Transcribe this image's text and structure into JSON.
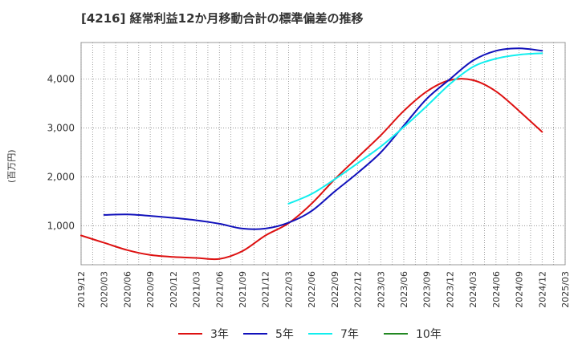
{
  "title": "[4216]  経常利益12か月移動合計の標準偏差の推移",
  "chart_data": {
    "type": "line",
    "ylabel": "(百万円)",
    "xlabel": "",
    "grid": true,
    "legend_position": "bottom",
    "x_ticks": [
      "2019/12",
      "2020/03",
      "2020/06",
      "2020/09",
      "2020/12",
      "2021/03",
      "2021/06",
      "2021/09",
      "2021/12",
      "2022/03",
      "2022/06",
      "2022/09",
      "2022/12",
      "2023/03",
      "2023/06",
      "2023/09",
      "2023/12",
      "2024/03",
      "2024/06",
      "2024/09",
      "2024/12",
      "2025/03"
    ],
    "y_ticks": [
      1000,
      2000,
      3000,
      4000
    ],
    "y_tick_labels": [
      "1,000",
      "2,000",
      "3,000",
      "4,000"
    ],
    "xlim": [
      "2019/12",
      "2025/03"
    ],
    "ylim": [
      200,
      4750
    ],
    "series": [
      {
        "name": "3年",
        "color": "#dd1111",
        "points": [
          [
            "2019/12",
            800
          ],
          [
            "2020/03",
            650
          ],
          [
            "2020/06",
            500
          ],
          [
            "2020/09",
            400
          ],
          [
            "2020/12",
            360
          ],
          [
            "2021/03",
            340
          ],
          [
            "2021/06",
            320
          ],
          [
            "2021/09",
            480
          ],
          [
            "2021/12",
            800
          ],
          [
            "2022/03",
            1050
          ],
          [
            "2022/06",
            1450
          ],
          [
            "2022/09",
            1950
          ],
          [
            "2022/12",
            2400
          ],
          [
            "2023/03",
            2850
          ],
          [
            "2023/06",
            3350
          ],
          [
            "2023/09",
            3750
          ],
          [
            "2023/12",
            3980
          ],
          [
            "2024/03",
            3980
          ],
          [
            "2024/06",
            3750
          ],
          [
            "2024/09",
            3350
          ],
          [
            "2024/12",
            2920
          ]
        ]
      },
      {
        "name": "5年",
        "color": "#1111bb",
        "points": [
          [
            "2020/03",
            1220
          ],
          [
            "2020/06",
            1230
          ],
          [
            "2020/09",
            1200
          ],
          [
            "2020/12",
            1160
          ],
          [
            "2021/03",
            1110
          ],
          [
            "2021/06",
            1040
          ],
          [
            "2021/09",
            940
          ],
          [
            "2021/12",
            940
          ],
          [
            "2022/03",
            1060
          ],
          [
            "2022/06",
            1300
          ],
          [
            "2022/09",
            1700
          ],
          [
            "2022/12",
            2080
          ],
          [
            "2023/03",
            2500
          ],
          [
            "2023/06",
            3050
          ],
          [
            "2023/09",
            3600
          ],
          [
            "2023/12",
            4000
          ],
          [
            "2024/03",
            4380
          ],
          [
            "2024/06",
            4580
          ],
          [
            "2024/09",
            4630
          ],
          [
            "2024/12",
            4580
          ]
        ]
      },
      {
        "name": "7年",
        "color": "#11eeee",
        "points": [
          [
            "2022/03",
            1450
          ],
          [
            "2022/06",
            1650
          ],
          [
            "2022/09",
            1950
          ],
          [
            "2022/12",
            2280
          ],
          [
            "2023/03",
            2620
          ],
          [
            "2023/06",
            3020
          ],
          [
            "2023/09",
            3450
          ],
          [
            "2023/12",
            3900
          ],
          [
            "2024/03",
            4250
          ],
          [
            "2024/06",
            4420
          ],
          [
            "2024/09",
            4500
          ],
          [
            "2024/12",
            4530
          ]
        ]
      },
      {
        "name": "10年",
        "color": "#228822",
        "points": []
      }
    ]
  }
}
